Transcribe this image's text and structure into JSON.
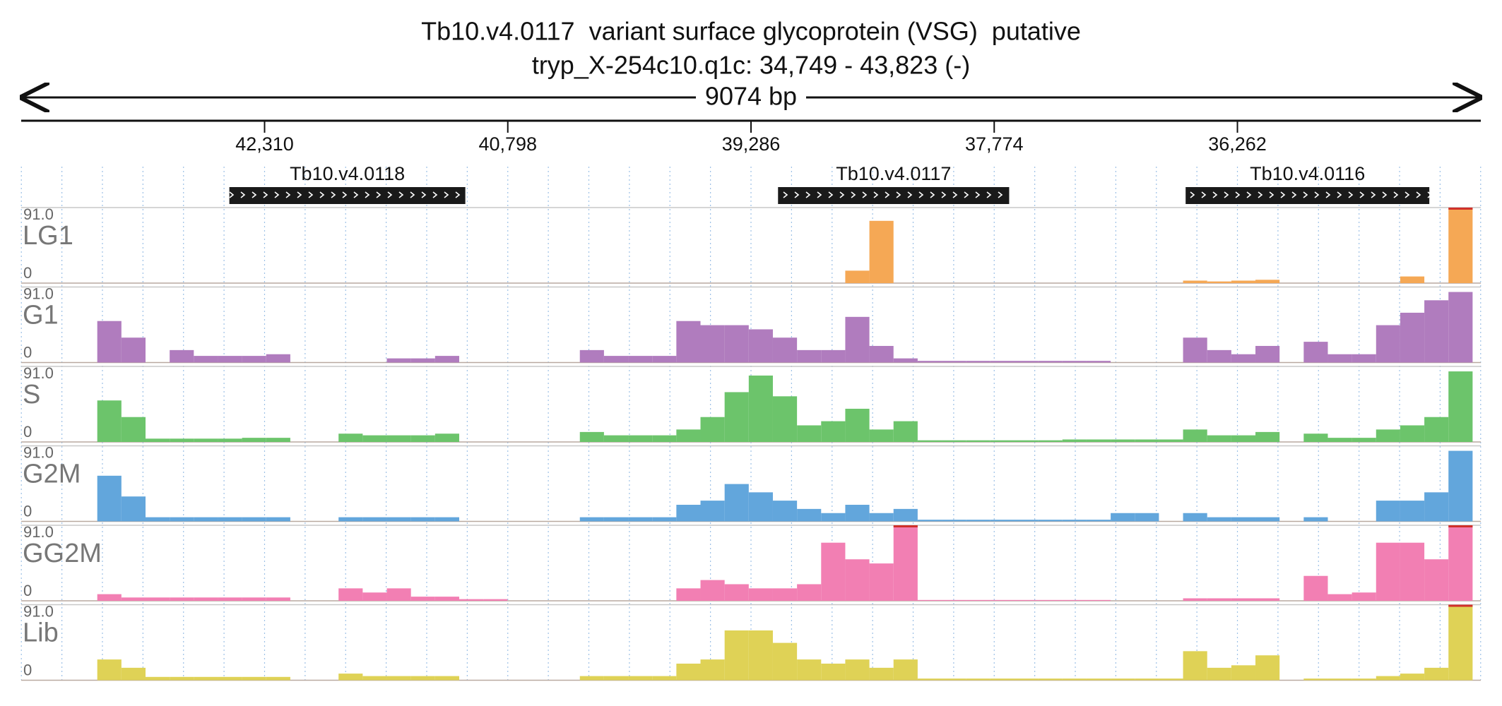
{
  "chart_data": {
    "type": "histogram",
    "title": "Tb10.v4.0117  variant surface glycoprotein (VSG)  putative",
    "subtitle": "tryp_X-254c10.q1c: 34,749 - 43,823 (-)",
    "span_label": "9074 bp",
    "xlim": [
      43823,
      34749
    ],
    "xticks": [
      {
        "value": 42310,
        "label": "42,310"
      },
      {
        "value": 40798,
        "label": "40,798"
      },
      {
        "value": 39286,
        "label": "39,286"
      },
      {
        "value": 37774,
        "label": "37,774"
      },
      {
        "value": 36262,
        "label": "36,262"
      }
    ],
    "genes": [
      {
        "name": "Tb10.v4.0118",
        "start": 42529,
        "end": 41062
      },
      {
        "name": "Tb10.v4.0117",
        "start": 39118,
        "end": 37681
      },
      {
        "name": "Tb10.v4.0116",
        "start": 36584,
        "end": 35069
      }
    ],
    "ylim": [
      0,
      91
    ],
    "yticks": [
      0,
      {
        "value": 91,
        "label": "91.0"
      }
    ],
    "bins": [
      43800,
      43650,
      43500,
      43350,
      43200,
      43050,
      42900,
      42750,
      42600,
      42450,
      42300,
      42150,
      42000,
      41850,
      41700,
      41550,
      41400,
      41250,
      41100,
      40950,
      40800,
      40650,
      40500,
      40350,
      40200,
      40050,
      39900,
      39750,
      39600,
      39450,
      39300,
      39150,
      39000,
      38850,
      38700,
      38550,
      38400,
      38250,
      38100,
      37950,
      37800,
      37650,
      37500,
      37350,
      37200,
      37050,
      36900,
      36750,
      36600,
      36450,
      36300,
      36150,
      36000,
      35850,
      35700,
      35550,
      35400,
      35250,
      35100,
      34950,
      34800
    ],
    "series": [
      {
        "name": "LG1",
        "color": "#f5a855",
        "values": [
          0,
          0,
          0,
          0,
          0,
          0,
          0,
          0,
          0,
          0,
          0,
          0,
          0,
          0,
          0,
          0,
          0,
          0,
          0,
          0,
          0,
          0,
          0,
          0,
          0,
          0,
          0,
          0,
          0,
          0,
          0,
          0,
          0,
          0,
          15,
          75,
          0,
          0,
          0,
          0,
          0,
          0,
          0,
          0,
          0,
          0,
          0,
          0,
          3,
          2,
          3,
          4,
          0,
          0,
          0,
          0,
          0,
          8,
          0,
          91
        ]
      },
      {
        "name": "G1",
        "color": "#b07cbe",
        "values": [
          0,
          0,
          0,
          50,
          30,
          0,
          15,
          8,
          8,
          8,
          10,
          0,
          0,
          0,
          0,
          5,
          5,
          8,
          0,
          0,
          0,
          0,
          0,
          15,
          8,
          8,
          8,
          50,
          45,
          45,
          40,
          30,
          15,
          15,
          55,
          20,
          5,
          2,
          2,
          2,
          2,
          2,
          2,
          2,
          2,
          0,
          0,
          0,
          30,
          15,
          10,
          20,
          0,
          25,
          10,
          10,
          45,
          60,
          75,
          85
        ]
      },
      {
        "name": "S",
        "color": "#6cc46b",
        "values": [
          0,
          0,
          0,
          50,
          30,
          4,
          4,
          4,
          4,
          5,
          5,
          0,
          0,
          10,
          8,
          8,
          8,
          10,
          0,
          0,
          0,
          0,
          0,
          12,
          8,
          8,
          8,
          15,
          30,
          60,
          80,
          55,
          20,
          25,
          40,
          15,
          25,
          2,
          2,
          2,
          2,
          2,
          2,
          3,
          3,
          3,
          3,
          3,
          15,
          8,
          8,
          12,
          0,
          10,
          5,
          5,
          15,
          20,
          30,
          85
        ]
      },
      {
        "name": "G2M",
        "color": "#62a6dc",
        "values": [
          0,
          0,
          0,
          55,
          30,
          5,
          5,
          5,
          5,
          5,
          5,
          0,
          0,
          5,
          5,
          5,
          5,
          5,
          0,
          0,
          0,
          0,
          0,
          5,
          5,
          5,
          5,
          20,
          25,
          45,
          35,
          25,
          15,
          10,
          20,
          10,
          15,
          2,
          2,
          2,
          2,
          2,
          2,
          2,
          2,
          10,
          10,
          0,
          10,
          5,
          5,
          5,
          0,
          5,
          0,
          0,
          25,
          25,
          35,
          85
        ]
      },
      {
        "name": "GG2M",
        "color": "#f27fb3",
        "values": [
          0,
          0,
          0,
          8,
          4,
          4,
          4,
          4,
          4,
          4,
          4,
          0,
          0,
          15,
          10,
          15,
          5,
          5,
          2,
          2,
          0,
          0,
          0,
          0,
          0,
          0,
          0,
          15,
          25,
          20,
          15,
          15,
          20,
          70,
          50,
          45,
          91,
          1,
          1,
          1,
          1,
          1,
          1,
          1,
          1,
          0,
          0,
          0,
          3,
          3,
          3,
          3,
          0,
          30,
          8,
          10,
          70,
          70,
          50,
          91
        ]
      },
      {
        "name": "Lib",
        "color": "#dfd256",
        "values": [
          0,
          0,
          0,
          25,
          15,
          4,
          4,
          4,
          4,
          4,
          4,
          0,
          0,
          8,
          5,
          5,
          5,
          5,
          0,
          0,
          0,
          0,
          0,
          5,
          5,
          5,
          5,
          20,
          25,
          60,
          60,
          45,
          25,
          20,
          25,
          15,
          25,
          2,
          2,
          2,
          2,
          2,
          2,
          2,
          2,
          2,
          2,
          2,
          35,
          15,
          18,
          30,
          0,
          2,
          2,
          2,
          5,
          8,
          15,
          91
        ]
      }
    ]
  }
}
